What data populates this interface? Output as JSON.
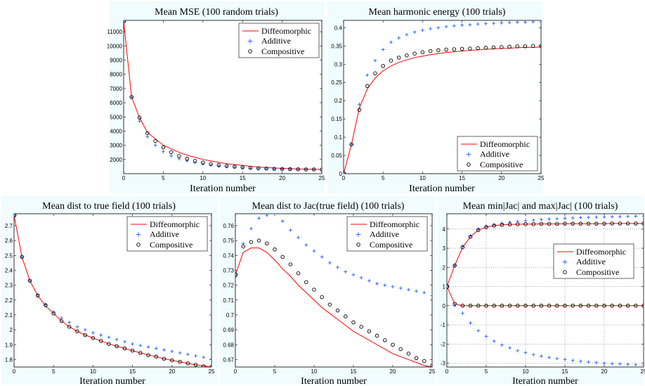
{
  "chart_data": [
    {
      "type": "line",
      "title": "Mean MSE (100 random trials)",
      "xlabel": "Iteration number",
      "ylabel": "",
      "xlim": [
        0,
        25
      ],
      "ylim": [
        1000,
        11800
      ],
      "xticks": [
        0,
        5,
        10,
        15,
        20,
        25
      ],
      "yticks": [
        2000,
        3000,
        4000,
        5000,
        6000,
        7000,
        8000,
        9000,
        10000,
        11000
      ],
      "grid": false,
      "legend_position": "top-right",
      "x": [
        0,
        1,
        2,
        3,
        4,
        5,
        6,
        7,
        8,
        9,
        10,
        11,
        12,
        13,
        14,
        15,
        16,
        17,
        18,
        19,
        20,
        21,
        22,
        23,
        24,
        25
      ],
      "series": [
        {
          "name": "Diffeomorphic",
          "style": "line",
          "color": "#ff0000",
          "values": [
            11750,
            6400,
            4950,
            3900,
            3450,
            3000,
            2750,
            2500,
            2300,
            2150,
            2000,
            1900,
            1800,
            1700,
            1640,
            1580,
            1520,
            1470,
            1430,
            1400,
            1370,
            1350,
            1330,
            1320,
            1310,
            1300
          ]
        },
        {
          "name": "Additive",
          "style": "plus",
          "color": "#1f5fff",
          "values": [
            11750,
            6400,
            4700,
            3600,
            3000,
            2550,
            2250,
            2050,
            1900,
            1780,
            1680,
            1600,
            1540,
            1490,
            1450,
            1410,
            1380,
            1360,
            1340,
            1330,
            1320,
            1310,
            1300,
            1300,
            1290,
            1290
          ]
        },
        {
          "name": "Compositive",
          "style": "circle",
          "color": "#000000",
          "values": [
            11750,
            6400,
            4950,
            3850,
            3300,
            2850,
            2520,
            2250,
            2050,
            1900,
            1780,
            1680,
            1600,
            1540,
            1490,
            1450,
            1410,
            1380,
            1360,
            1340,
            1330,
            1320,
            1310,
            1300,
            1300,
            1290
          ]
        }
      ]
    },
    {
      "type": "line",
      "title": "Mean harmonic energy (100 trials)",
      "xlabel": "Iteration number",
      "ylabel": "",
      "xlim": [
        0,
        25
      ],
      "ylim": [
        0,
        0.42
      ],
      "xticks": [
        0,
        5,
        10,
        15,
        20,
        25
      ],
      "yticks": [
        0,
        0.05,
        0.1,
        0.15,
        0.2,
        0.25,
        0.3,
        0.35,
        0.4
      ],
      "grid": false,
      "legend_position": "bottom-right",
      "x": [
        0,
        1,
        2,
        3,
        4,
        5,
        6,
        7,
        8,
        9,
        10,
        11,
        12,
        13,
        14,
        15,
        16,
        17,
        18,
        19,
        20,
        21,
        22,
        23,
        24,
        25
      ],
      "series": [
        {
          "name": "Diffeomorphic",
          "style": "line",
          "color": "#ff0000",
          "values": [
            0,
            0.08,
            0.18,
            0.232,
            0.262,
            0.282,
            0.295,
            0.305,
            0.312,
            0.318,
            0.322,
            0.326,
            0.329,
            0.332,
            0.334,
            0.336,
            0.338,
            0.339,
            0.341,
            0.342,
            0.343,
            0.344,
            0.345,
            0.346,
            0.346,
            0.347
          ]
        },
        {
          "name": "Additive",
          "style": "plus",
          "color": "#1f5fff",
          "values": [
            0,
            0.08,
            0.19,
            0.27,
            0.31,
            0.34,
            0.36,
            0.372,
            0.381,
            0.388,
            0.393,
            0.397,
            0.4,
            0.403,
            0.405,
            0.407,
            0.408,
            0.41,
            0.411,
            0.412,
            0.413,
            0.414,
            0.415,
            0.415,
            0.416,
            0.416
          ]
        },
        {
          "name": "Compositive",
          "style": "circle",
          "color": "#000000",
          "values": [
            0,
            0.08,
            0.175,
            0.24,
            0.275,
            0.295,
            0.31,
            0.318,
            0.324,
            0.329,
            0.333,
            0.336,
            0.338,
            0.34,
            0.341,
            0.342,
            0.343,
            0.344,
            0.345,
            0.346,
            0.347,
            0.348,
            0.349,
            0.349,
            0.35,
            0.35
          ]
        }
      ]
    },
    {
      "type": "line",
      "title": "Mean dist to true field (100 trials)",
      "xlabel": "Iteration number",
      "ylabel": "",
      "xlim": [
        0,
        25
      ],
      "ylim": [
        1.75,
        2.78
      ],
      "xticks": [
        0,
        5,
        10,
        15,
        20,
        25
      ],
      "yticks": [
        1.8,
        1.9,
        2,
        2.1,
        2.2,
        2.3,
        2.4,
        2.5,
        2.6,
        2.7
      ],
      "grid": false,
      "legend_position": "top-right",
      "x": [
        0,
        1,
        2,
        3,
        4,
        5,
        6,
        7,
        8,
        9,
        10,
        11,
        12,
        13,
        14,
        15,
        16,
        17,
        18,
        19,
        20,
        21,
        22,
        23,
        24,
        25
      ],
      "series": [
        {
          "name": "Diffeomorphic",
          "style": "line",
          "color": "#ff0000",
          "values": [
            2.77,
            2.49,
            2.33,
            2.23,
            2.16,
            2.11,
            2.06,
            2.02,
            1.99,
            1.965,
            1.945,
            1.925,
            1.905,
            1.89,
            1.875,
            1.86,
            1.845,
            1.83,
            1.82,
            1.805,
            1.795,
            1.785,
            1.775,
            1.765,
            1.758,
            1.75
          ]
        },
        {
          "name": "Additive",
          "style": "plus",
          "color": "#1f5fff",
          "values": [
            2.77,
            2.49,
            2.33,
            2.235,
            2.17,
            2.12,
            2.08,
            2.05,
            2.02,
            2.0,
            1.98,
            1.965,
            1.95,
            1.935,
            1.92,
            1.905,
            1.895,
            1.885,
            1.875,
            1.865,
            1.855,
            1.845,
            1.835,
            1.825,
            1.815,
            1.805
          ]
        },
        {
          "name": "Compositive",
          "style": "circle",
          "color": "#000000",
          "values": [
            2.77,
            2.49,
            2.33,
            2.23,
            2.165,
            2.11,
            2.06,
            2.02,
            1.99,
            1.965,
            1.945,
            1.925,
            1.905,
            1.89,
            1.875,
            1.86,
            1.845,
            1.83,
            1.82,
            1.805,
            1.795,
            1.785,
            1.775,
            1.765,
            1.755,
            1.75
          ]
        }
      ]
    },
    {
      "type": "line",
      "title": "Mean dist to Jac(true field) (100 trials)",
      "xlabel": "Iteration number",
      "ylabel": "",
      "xlim": [
        0,
        25
      ],
      "ylim": [
        0.665,
        0.768
      ],
      "xticks": [
        0,
        5,
        10,
        15,
        20,
        25
      ],
      "yticks": [
        0.67,
        0.68,
        0.69,
        0.7,
        0.71,
        0.72,
        0.73,
        0.74,
        0.75,
        0.76
      ],
      "grid": false,
      "legend_position": "top-right",
      "x": [
        0,
        1,
        2,
        3,
        4,
        5,
        6,
        7,
        8,
        9,
        10,
        11,
        12,
        13,
        14,
        15,
        16,
        17,
        18,
        19,
        20,
        21,
        22,
        23,
        24,
        25
      ],
      "series": [
        {
          "name": "Diffeomorphic",
          "style": "line",
          "color": "#ff0000",
          "values": [
            0.727,
            0.742,
            0.745,
            0.745,
            0.742,
            0.737,
            0.731,
            0.726,
            0.72,
            0.715,
            0.71,
            0.705,
            0.701,
            0.697,
            0.693,
            0.689,
            0.686,
            0.683,
            0.68,
            0.677,
            0.674,
            0.672,
            0.67,
            0.668,
            0.666,
            0.665
          ]
        },
        {
          "name": "Additive",
          "style": "plus",
          "color": "#1f5fff",
          "values": [
            0.727,
            0.748,
            0.758,
            0.765,
            0.767,
            0.768,
            0.763,
            0.757,
            0.752,
            0.747,
            0.743,
            0.739,
            0.735,
            0.732,
            0.729,
            0.727,
            0.725,
            0.723,
            0.721,
            0.72,
            0.719,
            0.718,
            0.717,
            0.716,
            0.715,
            0.713
          ]
        },
        {
          "name": "Compositive",
          "style": "circle",
          "color": "#000000",
          "values": [
            0.727,
            0.746,
            0.749,
            0.75,
            0.748,
            0.744,
            0.739,
            0.734,
            0.728,
            0.722,
            0.717,
            0.712,
            0.707,
            0.703,
            0.699,
            0.695,
            0.692,
            0.689,
            0.686,
            0.683,
            0.68,
            0.677,
            0.674,
            0.671,
            0.669,
            0.666
          ]
        }
      ]
    },
    {
      "type": "line",
      "title": "Mean min|Jac| and max|Jac| (100 trials)",
      "xlabel": "Iteration number",
      "ylabel": "",
      "xlim": [
        0,
        25
      ],
      "ylim": [
        -3.2,
        4.8
      ],
      "xticks": [
        0,
        5,
        10,
        15,
        20,
        25
      ],
      "yticks": [
        -3,
        -2,
        -1,
        0,
        1,
        2,
        3,
        4
      ],
      "grid": true,
      "legend_position": "right",
      "x": [
        0,
        1,
        2,
        3,
        4,
        5,
        6,
        7,
        8,
        9,
        10,
        11,
        12,
        13,
        14,
        15,
        16,
        17,
        18,
        19,
        20,
        21,
        22,
        23,
        24,
        25
      ],
      "series": [
        {
          "name": "Diffeomorphic",
          "style": "line",
          "color": "#ff0000",
          "values": [
            1,
            2.1,
            3.05,
            3.6,
            3.95,
            4.1,
            4.18,
            4.22,
            4.24,
            4.25,
            4.26,
            4.26,
            4.27,
            4.27,
            4.27,
            4.28,
            4.28,
            4.28,
            4.28,
            4.28,
            4.28,
            4.29,
            4.29,
            4.29,
            4.29,
            4.29
          ]
        },
        {
          "name": "Additive",
          "style": "plus",
          "color": "#1f5fff",
          "values": [
            1,
            2.1,
            3.1,
            3.65,
            4.0,
            4.15,
            4.23,
            4.3,
            4.36,
            4.4,
            4.44,
            4.47,
            4.5,
            4.52,
            4.54,
            4.56,
            4.58,
            4.6,
            4.61,
            4.62,
            4.63,
            4.64,
            4.65,
            4.66,
            4.67,
            4.68
          ]
        },
        {
          "name": "Compositive",
          "style": "circle",
          "color": "#000000",
          "values": [
            1,
            2.1,
            3.05,
            3.6,
            3.95,
            4.1,
            4.18,
            4.22,
            4.24,
            4.25,
            4.26,
            4.26,
            4.27,
            4.27,
            4.27,
            4.28,
            4.28,
            4.28,
            4.28,
            4.28,
            4.28,
            4.29,
            4.29,
            4.29,
            4.29,
            4.29
          ]
        },
        {
          "name": "Diffeomorphic",
          "style": "line",
          "color": "#ff0000",
          "values": [
            1,
            0.1,
            0.0,
            0.0,
            0.0,
            0.0,
            0.0,
            0.0,
            0.0,
            0.0,
            0.0,
            0.0,
            0.0,
            0.0,
            0.0,
            0.0,
            0.0,
            0.0,
            0.0,
            0.0,
            0.0,
            0.0,
            0.0,
            0.0,
            0.0,
            0.0
          ]
        },
        {
          "name": "Additive",
          "style": "plus",
          "color": "#1f5fff",
          "values": [
            1,
            0.0,
            -0.4,
            -0.9,
            -1.3,
            -1.6,
            -1.85,
            -2.05,
            -2.2,
            -2.35,
            -2.45,
            -2.55,
            -2.63,
            -2.7,
            -2.76,
            -2.81,
            -2.86,
            -2.9,
            -2.94,
            -2.97,
            -3.0,
            -3.02,
            -3.04,
            -3.06,
            -3.08,
            -3.1
          ]
        },
        {
          "name": "Compositive",
          "style": "circle",
          "color": "#000000",
          "values": [
            1,
            0.1,
            0.0,
            0.0,
            0.0,
            0.0,
            0.0,
            0.0,
            0.0,
            0.0,
            0.0,
            0.0,
            0.0,
            0.0,
            0.0,
            0.0,
            0.0,
            0.0,
            0.0,
            0.0,
            0.0,
            0.0,
            0.0,
            0.0,
            0.0,
            0.0
          ]
        }
      ]
    }
  ]
}
